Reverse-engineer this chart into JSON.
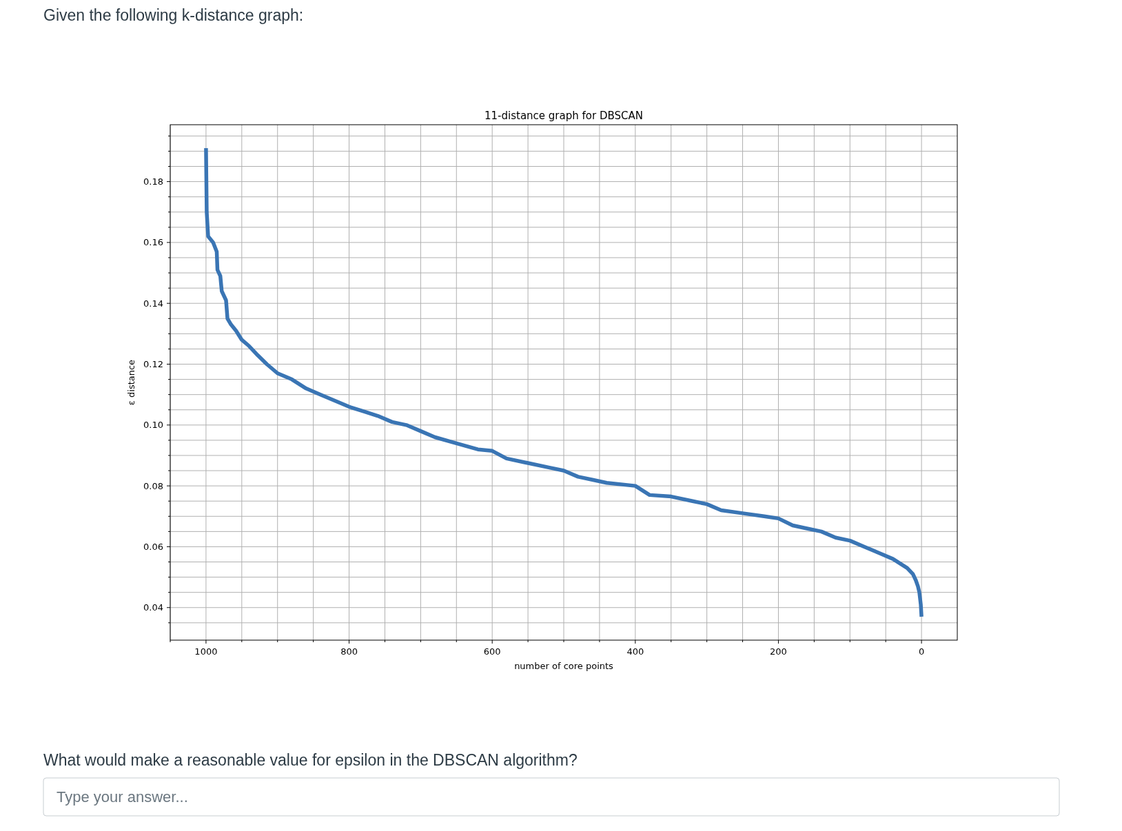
{
  "chart_data": {
    "type": "line",
    "title": "11-distance graph for DBSCAN",
    "xlabel": "number of core points",
    "ylabel": "ε distance",
    "annotations": [
      "Given the following k-distance graph:",
      "What would make a reasonable value for epsilon in the DBSCAN algorithm?",
      "Type your answer..."
    ],
    "series": [
      {
        "color": "#3a75b4",
        "x": [
          1000,
          999,
          997,
          990,
          985,
          984,
          980,
          978,
          972,
          970,
          965,
          958,
          950,
          940,
          928,
          915,
          900,
          880,
          860,
          840,
          820,
          800,
          780,
          760,
          740,
          720,
          700,
          680,
          650,
          620,
          600,
          580,
          550,
          520,
          500,
          480,
          460,
          440,
          400,
          380,
          350,
          320,
          300,
          280,
          250,
          220,
          200,
          180,
          160,
          140,
          120,
          100,
          80,
          60,
          40,
          20,
          12,
          8,
          5,
          3,
          1,
          0
        ],
        "values": [
          0.191,
          0.17,
          0.162,
          0.16,
          0.157,
          0.151,
          0.149,
          0.144,
          0.141,
          0.135,
          0.133,
          0.131,
          0.128,
          0.126,
          0.123,
          0.12,
          0.117,
          0.115,
          0.112,
          0.11,
          0.108,
          0.106,
          0.1045,
          0.103,
          0.101,
          0.1,
          0.098,
          0.096,
          0.094,
          0.092,
          0.0915,
          0.089,
          0.0875,
          0.086,
          0.085,
          0.083,
          0.082,
          0.081,
          0.08,
          0.077,
          0.0765,
          0.075,
          0.074,
          0.072,
          0.071,
          0.07,
          0.0693,
          0.067,
          0.066,
          0.065,
          0.063,
          0.062,
          0.06,
          0.058,
          0.056,
          0.053,
          0.051,
          0.049,
          0.047,
          0.045,
          0.041,
          0.037
        ]
      }
    ],
    "xlim": [
      1050,
      -50
    ],
    "ylim": [
      0.0293,
      0.1987
    ],
    "xticks": [
      {
        "value": 1050,
        "label": null
      },
      1000,
      {
        "value": 950,
        "label": null
      },
      {
        "value": 900,
        "label": null
      },
      {
        "value": 850,
        "label": null
      },
      800,
      {
        "value": 750,
        "label": null
      },
      {
        "value": 700,
        "label": null
      },
      {
        "value": 650,
        "label": null
      },
      600,
      {
        "value": 550,
        "label": null
      },
      {
        "value": 500,
        "label": null
      },
      {
        "value": 450,
        "label": null
      },
      400,
      {
        "value": 350,
        "label": null
      },
      {
        "value": 300,
        "label": null
      },
      {
        "value": 250,
        "label": null
      },
      200,
      {
        "value": 150,
        "label": null
      },
      {
        "value": 100,
        "label": null
      },
      {
        "value": 50,
        "label": null
      },
      0
    ],
    "yticks": [
      {
        "value": 0.035,
        "label": null
      },
      0.04,
      {
        "value": 0.045,
        "label": null
      },
      {
        "value": 0.05,
        "label": null
      },
      {
        "value": 0.055,
        "label": null
      },
      0.06,
      {
        "value": 0.065,
        "label": null
      },
      {
        "value": 0.07,
        "label": null
      },
      {
        "value": 0.075,
        "label": null
      },
      0.08,
      {
        "value": 0.085,
        "label": null
      },
      {
        "value": 0.09,
        "label": null
      },
      {
        "value": 0.095,
        "label": null
      },
      {
        "value": 0.1,
        "label": "0.10"
      },
      {
        "value": 0.105,
        "label": null
      },
      {
        "value": 0.11,
        "label": null
      },
      {
        "value": 0.115,
        "label": null
      },
      0.12,
      {
        "value": 0.125,
        "label": null
      },
      {
        "value": 0.13,
        "label": null
      },
      {
        "value": 0.135,
        "label": null
      },
      0.14,
      {
        "value": 0.145,
        "label": null
      },
      {
        "value": 0.15,
        "label": null
      },
      {
        "value": 0.155,
        "label": null
      },
      0.16,
      {
        "value": 0.165,
        "label": null
      },
      {
        "value": 0.17,
        "label": null
      },
      {
        "value": 0.175,
        "label": null
      },
      0.18,
      {
        "value": 0.185,
        "label": null
      },
      {
        "value": 0.19,
        "label": null
      },
      {
        "value": 0.195,
        "label": null
      }
    ],
    "grid": true,
    "line_style": "solid",
    "marker": "none"
  }
}
